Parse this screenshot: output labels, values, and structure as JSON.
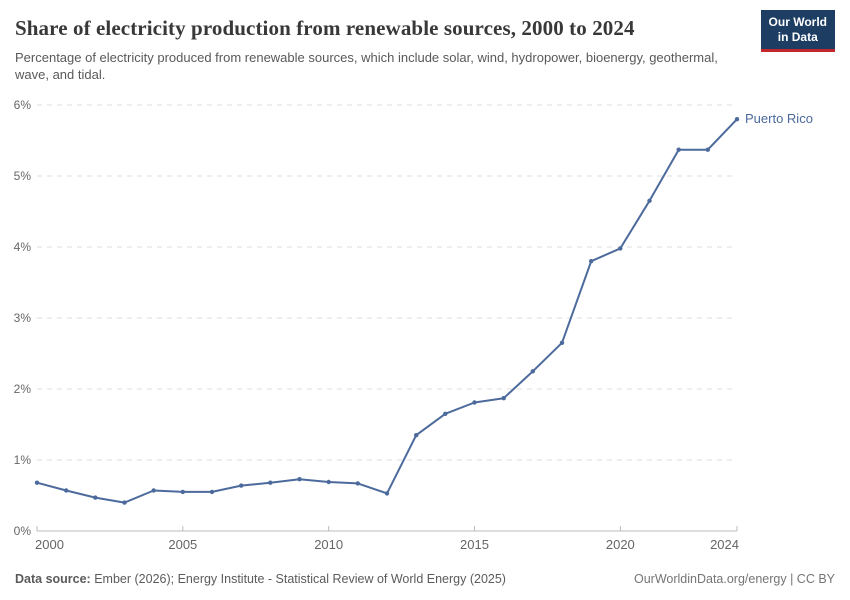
{
  "header": {
    "title": "Share of electricity production from renewable sources, 2000 to 2024",
    "subtitle": "Percentage of electricity produced from renewable sources, which include solar, wind, hydropower, bioenergy, geothermal, wave, and tidal.",
    "logo": {
      "line1": "Our World",
      "line2": "in Data"
    }
  },
  "chart_data": {
    "type": "line",
    "title": "Share of electricity production from renewable sources, 2000 to 2024",
    "series": [
      {
        "name": "Puerto Rico",
        "x": [
          2000,
          2001,
          2002,
          2003,
          2004,
          2005,
          2006,
          2007,
          2008,
          2009,
          2010,
          2011,
          2012,
          2013,
          2014,
          2015,
          2016,
          2017,
          2018,
          2019,
          2020,
          2021,
          2022,
          2023,
          2024
        ],
        "values": [
          0.68,
          0.57,
          0.47,
          0.4,
          0.57,
          0.55,
          0.55,
          0.64,
          0.68,
          0.73,
          0.69,
          0.67,
          0.53,
          1.35,
          1.65,
          1.81,
          1.87,
          2.25,
          2.65,
          3.8,
          3.98,
          4.65,
          5.37,
          5.37,
          5.8
        ]
      }
    ],
    "entity_label": "Puerto Rico",
    "xlabel": "",
    "ylabel": "",
    "xlim": [
      2000,
      2024
    ],
    "ylim": [
      0,
      6
    ],
    "yticks": [
      0,
      1,
      2,
      3,
      4,
      5,
      6
    ],
    "ytick_suffix": "%",
    "xticks": [
      2000,
      2005,
      2010,
      2015,
      2020,
      2024
    ],
    "xticks_with_marks": [
      2005,
      2010,
      2015,
      2020
    ],
    "grid": "horizontal-dashed",
    "legend_position": "end-of-line",
    "colors": {
      "line": "#4C6A9C",
      "entity_label": "#4C6A9C",
      "grid": "#dedede",
      "axis": "#bbbbbb",
      "tick_label": "#666666"
    }
  },
  "footer": {
    "source_label": "Data source:",
    "source_text": " Ember (2026); Energy Institute - Statistical Review of World Energy (2025)",
    "credit": "OurWorldinData.org/energy | CC BY"
  }
}
